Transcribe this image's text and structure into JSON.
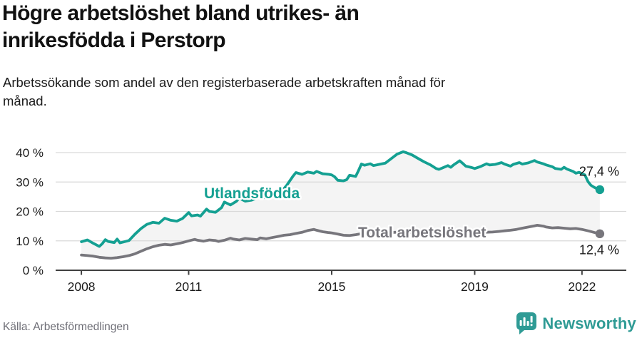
{
  "header": {
    "title": "Högre arbetslöshet bland utrikes- än\ninrikesfödda i Perstorp",
    "subtitle": "Arbetssökande som andel av den registerbaserade arbetskraften månad för\nmånad."
  },
  "footer": {
    "source": "Källa: Arbetsförmedlingen",
    "logo_text": "Newsworthy",
    "logo_icon": "newsworthy-bars-speech-bubble-icon",
    "logo_color": "#2f9b95"
  },
  "colors": {
    "teal_series": "#14a092",
    "gray_series": "#77767c",
    "fill_between": "#f4f4f4",
    "gridline": "#d9d9d9",
    "axis": "#404040",
    "text_dark": "#1b1b1b",
    "halo": "#ffffff"
  },
  "chart_data": {
    "type": "line",
    "title": "Högre arbetslöshet bland utrikes- än inrikesfödda i Perstorp",
    "xlabel": "",
    "ylabel": "Arbetssökande som andel av den registerbaserade arbetskraften",
    "xlim": [
      2007.28,
      2023.24
    ],
    "ylim": [
      0,
      43
    ],
    "grid": "horizontal",
    "legend_position": "inline-labels",
    "y_ticks": [
      {
        "v": 0,
        "label": "0 %"
      },
      {
        "v": 10,
        "label": "10 %"
      },
      {
        "v": 20,
        "label": "20 %"
      },
      {
        "v": 30,
        "label": "30 %"
      },
      {
        "v": 40,
        "label": "40 %"
      }
    ],
    "x_ticks": [
      {
        "v": 2008,
        "label": "2008"
      },
      {
        "v": 2011,
        "label": "2011"
      },
      {
        "v": 2015,
        "label": "2015"
      },
      {
        "v": 2019,
        "label": "2019"
      },
      {
        "v": 2022,
        "label": "2022"
      }
    ],
    "fill_between_series": true,
    "series": [
      {
        "id": "utlandsfodda",
        "name": "Utlandsfödda",
        "color": "#14a092",
        "end_label": "27,4 %",
        "points": [
          [
            2008.0,
            9.7
          ],
          [
            2008.17,
            10.3
          ],
          [
            2008.33,
            9.2
          ],
          [
            2008.5,
            8.1
          ],
          [
            2008.58,
            9.0
          ],
          [
            2008.67,
            10.4
          ],
          [
            2008.75,
            9.8
          ],
          [
            2008.92,
            9.4
          ],
          [
            2009.0,
            10.6
          ],
          [
            2009.08,
            9.3
          ],
          [
            2009.17,
            9.6
          ],
          [
            2009.33,
            10.1
          ],
          [
            2009.5,
            12.3
          ],
          [
            2009.67,
            14.2
          ],
          [
            2009.83,
            15.6
          ],
          [
            2010.0,
            16.3
          ],
          [
            2010.17,
            16.0
          ],
          [
            2010.33,
            17.7
          ],
          [
            2010.5,
            17.0
          ],
          [
            2010.67,
            16.7
          ],
          [
            2010.83,
            17.6
          ],
          [
            2011.0,
            19.6
          ],
          [
            2011.08,
            18.5
          ],
          [
            2011.25,
            18.8
          ],
          [
            2011.33,
            18.4
          ],
          [
            2011.5,
            20.8
          ],
          [
            2011.58,
            20.0
          ],
          [
            2011.75,
            19.7
          ],
          [
            2011.92,
            21.3
          ],
          [
            2012.0,
            23.2
          ],
          [
            2012.17,
            22.2
          ],
          [
            2012.33,
            23.4
          ],
          [
            2012.42,
            24.5
          ],
          [
            2012.58,
            23.5
          ],
          [
            2012.75,
            23.8
          ],
          [
            2012.92,
            24.6
          ],
          [
            2013.0,
            25.4
          ],
          [
            2013.08,
            24.6
          ],
          [
            2013.25,
            25.2
          ],
          [
            2013.42,
            25.8
          ],
          [
            2013.58,
            26.5
          ],
          [
            2013.75,
            29.0
          ],
          [
            2013.92,
            32.0
          ],
          [
            2014.0,
            33.2
          ],
          [
            2014.17,
            32.6
          ],
          [
            2014.33,
            33.4
          ],
          [
            2014.5,
            33.0
          ],
          [
            2014.58,
            33.6
          ],
          [
            2014.75,
            32.8
          ],
          [
            2014.92,
            32.6
          ],
          [
            2015.0,
            32.4
          ],
          [
            2015.08,
            31.8
          ],
          [
            2015.17,
            30.6
          ],
          [
            2015.33,
            30.4
          ],
          [
            2015.42,
            30.8
          ],
          [
            2015.5,
            32.3
          ],
          [
            2015.67,
            31.9
          ],
          [
            2015.75,
            33.9
          ],
          [
            2015.83,
            36.1
          ],
          [
            2015.92,
            35.7
          ],
          [
            2016.08,
            36.2
          ],
          [
            2016.17,
            35.6
          ],
          [
            2016.33,
            36.0
          ],
          [
            2016.5,
            36.4
          ],
          [
            2016.67,
            38.0
          ],
          [
            2016.83,
            39.5
          ],
          [
            2017.0,
            40.3
          ],
          [
            2017.08,
            40.0
          ],
          [
            2017.25,
            39.2
          ],
          [
            2017.42,
            38.0
          ],
          [
            2017.58,
            36.9
          ],
          [
            2017.75,
            35.9
          ],
          [
            2017.83,
            35.3
          ],
          [
            2017.92,
            34.6
          ],
          [
            2018.0,
            34.3
          ],
          [
            2018.08,
            34.7
          ],
          [
            2018.25,
            35.6
          ],
          [
            2018.33,
            35.0
          ],
          [
            2018.42,
            35.9
          ],
          [
            2018.58,
            37.2
          ],
          [
            2018.67,
            36.3
          ],
          [
            2018.75,
            35.4
          ],
          [
            2018.92,
            34.9
          ],
          [
            2019.0,
            34.6
          ],
          [
            2019.17,
            35.3
          ],
          [
            2019.33,
            36.2
          ],
          [
            2019.42,
            35.8
          ],
          [
            2019.58,
            36.0
          ],
          [
            2019.75,
            36.6
          ],
          [
            2019.83,
            36.1
          ],
          [
            2020.0,
            35.4
          ],
          [
            2020.08,
            36.0
          ],
          [
            2020.25,
            36.6
          ],
          [
            2020.33,
            36.1
          ],
          [
            2020.5,
            36.5
          ],
          [
            2020.67,
            37.3
          ],
          [
            2020.75,
            36.8
          ],
          [
            2020.92,
            36.2
          ],
          [
            2021.0,
            35.8
          ],
          [
            2021.17,
            35.2
          ],
          [
            2021.25,
            34.6
          ],
          [
            2021.42,
            34.3
          ],
          [
            2021.5,
            35.0
          ],
          [
            2021.58,
            34.4
          ],
          [
            2021.75,
            33.6
          ],
          [
            2021.83,
            33.0
          ],
          [
            2021.92,
            33.3
          ],
          [
            2022.0,
            32.8
          ],
          [
            2022.08,
            32.4
          ],
          [
            2022.17,
            30.1
          ],
          [
            2022.25,
            28.9
          ],
          [
            2022.33,
            28.3
          ],
          [
            2022.42,
            27.7
          ],
          [
            2022.5,
            27.4
          ]
        ]
      },
      {
        "id": "total",
        "name": "Total arbetslöshet",
        "color": "#77767c",
        "end_label": "12,4 %",
        "points": [
          [
            2008.0,
            5.2
          ],
          [
            2008.17,
            5.0
          ],
          [
            2008.33,
            4.8
          ],
          [
            2008.5,
            4.4
          ],
          [
            2008.67,
            4.2
          ],
          [
            2008.83,
            4.1
          ],
          [
            2009.0,
            4.3
          ],
          [
            2009.17,
            4.6
          ],
          [
            2009.33,
            5.0
          ],
          [
            2009.5,
            5.6
          ],
          [
            2009.67,
            6.5
          ],
          [
            2009.83,
            7.3
          ],
          [
            2010.0,
            8.0
          ],
          [
            2010.17,
            8.5
          ],
          [
            2010.33,
            8.8
          ],
          [
            2010.5,
            8.6
          ],
          [
            2010.67,
            9.0
          ],
          [
            2010.83,
            9.4
          ],
          [
            2011.0,
            10.0
          ],
          [
            2011.17,
            10.5
          ],
          [
            2011.25,
            10.2
          ],
          [
            2011.42,
            9.9
          ],
          [
            2011.58,
            10.3
          ],
          [
            2011.75,
            10.1
          ],
          [
            2011.83,
            9.8
          ],
          [
            2012.0,
            10.2
          ],
          [
            2012.17,
            10.9
          ],
          [
            2012.25,
            10.6
          ],
          [
            2012.42,
            10.3
          ],
          [
            2012.58,
            10.8
          ],
          [
            2012.75,
            10.6
          ],
          [
            2012.92,
            10.4
          ],
          [
            2013.0,
            11.0
          ],
          [
            2013.17,
            10.7
          ],
          [
            2013.33,
            11.1
          ],
          [
            2013.5,
            11.5
          ],
          [
            2013.67,
            11.9
          ],
          [
            2013.83,
            12.1
          ],
          [
            2014.0,
            12.5
          ],
          [
            2014.17,
            12.9
          ],
          [
            2014.33,
            13.5
          ],
          [
            2014.5,
            13.9
          ],
          [
            2014.58,
            13.6
          ],
          [
            2014.75,
            13.1
          ],
          [
            2014.92,
            12.8
          ],
          [
            2015.0,
            12.7
          ],
          [
            2015.17,
            12.3
          ],
          [
            2015.33,
            11.9
          ],
          [
            2015.5,
            11.8
          ],
          [
            2015.67,
            12.1
          ],
          [
            2015.83,
            12.4
          ],
          [
            2016.0,
            12.6
          ],
          [
            2016.25,
            12.4
          ],
          [
            2016.5,
            12.7
          ],
          [
            2016.75,
            12.9
          ],
          [
            2017.0,
            13.0
          ],
          [
            2017.25,
            12.8
          ],
          [
            2017.5,
            12.6
          ],
          [
            2017.75,
            12.7
          ],
          [
            2018.0,
            12.9
          ],
          [
            2018.25,
            12.7
          ],
          [
            2018.5,
            12.8
          ],
          [
            2018.75,
            13.0
          ],
          [
            2019.0,
            13.1
          ],
          [
            2019.25,
            12.9
          ],
          [
            2019.5,
            13.0
          ],
          [
            2019.67,
            13.2
          ],
          [
            2019.83,
            13.4
          ],
          [
            2020.0,
            13.6
          ],
          [
            2020.17,
            13.9
          ],
          [
            2020.33,
            14.3
          ],
          [
            2020.5,
            14.7
          ],
          [
            2020.67,
            15.1
          ],
          [
            2020.75,
            15.3
          ],
          [
            2020.92,
            15.0
          ],
          [
            2021.0,
            14.7
          ],
          [
            2021.17,
            14.4
          ],
          [
            2021.33,
            14.5
          ],
          [
            2021.5,
            14.3
          ],
          [
            2021.67,
            14.1
          ],
          [
            2021.83,
            14.2
          ],
          [
            2022.0,
            13.9
          ],
          [
            2022.17,
            13.4
          ],
          [
            2022.33,
            12.9
          ],
          [
            2022.42,
            12.6
          ],
          [
            2022.5,
            12.4
          ]
        ]
      }
    ]
  }
}
